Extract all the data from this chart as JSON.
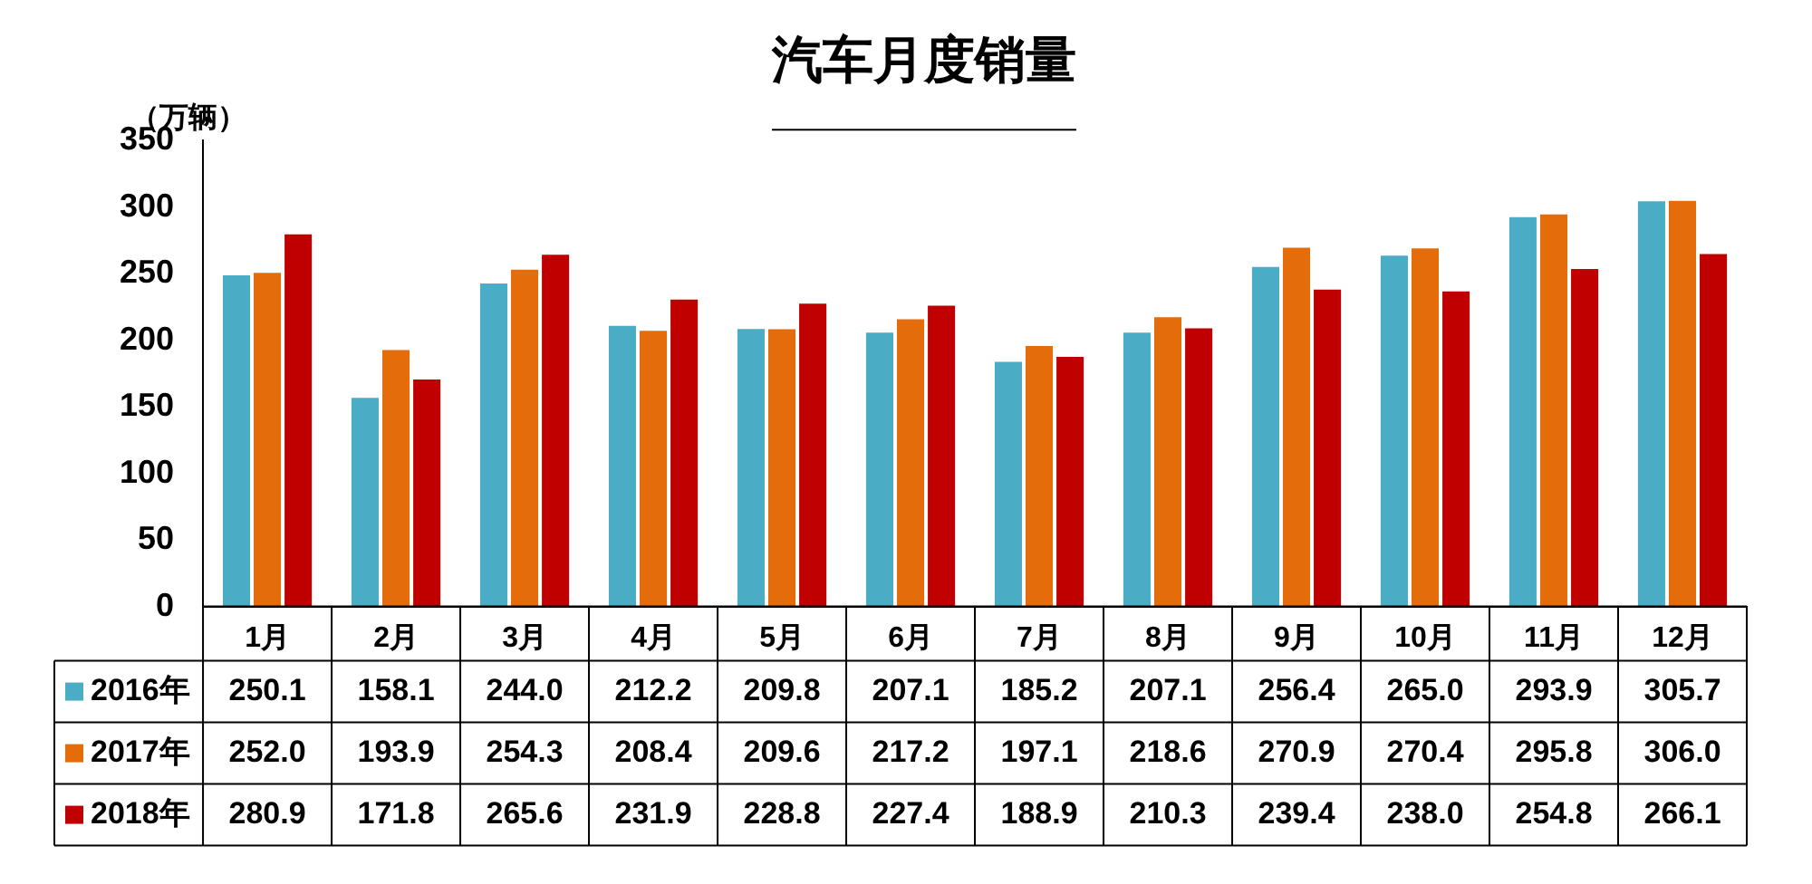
{
  "chart_data": {
    "type": "bar",
    "title": "汽车月度销量",
    "ylabel": "（万辆）",
    "categories": [
      "1月",
      "2月",
      "3月",
      "4月",
      "5月",
      "6月",
      "7月",
      "8月",
      "9月",
      "10月",
      "11月",
      "12月"
    ],
    "series": [
      {
        "name": "2016年",
        "color": "#4bacc6",
        "values": [
          250.1,
          158.1,
          244.0,
          212.2,
          209.8,
          207.1,
          185.2,
          207.1,
          256.4,
          265.0,
          293.9,
          305.7
        ],
        "value_labels": [
          "250.1",
          "158.1",
          "244.0",
          "212.2",
          "209.8",
          "207.1",
          "185.2",
          "207.1",
          "256.4",
          "265.0",
          "293.9",
          "305.7"
        ]
      },
      {
        "name": "2017年",
        "color": "#e46c0a",
        "values": [
          252.0,
          193.9,
          254.3,
          208.4,
          209.6,
          217.2,
          197.1,
          218.6,
          270.9,
          270.4,
          295.8,
          306.0
        ],
        "value_labels": [
          "252.0",
          "193.9",
          "254.3",
          "208.4",
          "209.6",
          "217.2",
          "197.1",
          "218.6",
          "270.9",
          "270.4",
          "295.8",
          "306.0"
        ]
      },
      {
        "name": "2018年",
        "color": "#c00000",
        "values": [
          280.9,
          171.8,
          265.6,
          231.9,
          228.8,
          227.4,
          188.9,
          210.3,
          239.4,
          238.0,
          254.8,
          266.1
        ],
        "value_labels": [
          "280.9",
          "171.8",
          "265.6",
          "231.9",
          "228.8",
          "227.4",
          "188.9",
          "210.3",
          "239.4",
          "238.0",
          "254.8",
          "266.1"
        ]
      }
    ],
    "ylim": [
      0,
      350
    ],
    "yticks": [
      0,
      50,
      100,
      150,
      200,
      250,
      300,
      350
    ],
    "grid": false,
    "legend": "bottom"
  }
}
